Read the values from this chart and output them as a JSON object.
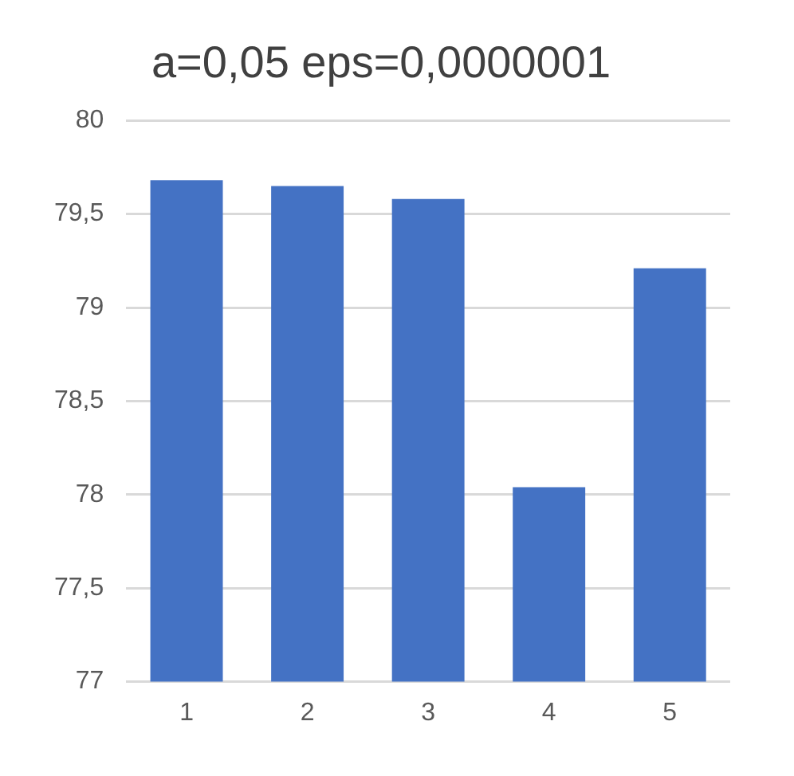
{
  "chart_data": {
    "type": "bar",
    "title": "a=0,05 eps=0,0000001",
    "categories": [
      "1",
      "2",
      "3",
      "4",
      "5"
    ],
    "values": [
      79.68,
      79.65,
      79.58,
      78.04,
      79.21
    ],
    "color": "#4472c4",
    "ylim": [
      77,
      80
    ],
    "yticks": [
      77,
      {
        "value": 77.5,
        "label": "77,5"
      },
      78,
      {
        "value": 78.5,
        "label": "78,5"
      },
      79,
      {
        "value": 79.5,
        "label": "79,5"
      },
      80
    ],
    "grid": "y",
    "legend": false
  }
}
